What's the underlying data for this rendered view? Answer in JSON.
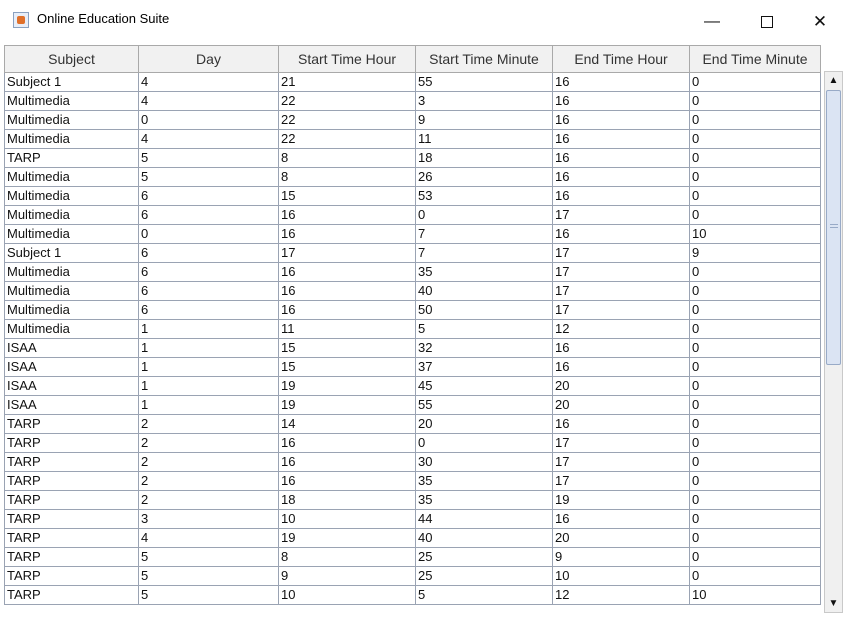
{
  "window": {
    "title": "Online Education Suite",
    "min": "—",
    "close": "✕"
  },
  "table": {
    "columns": [
      "Subject",
      "Day",
      "Start Time Hour",
      "Start Time Minute",
      "End Time Hour",
      "End Time Minute"
    ],
    "rows": [
      [
        "Subject 1",
        "4",
        "21",
        "55",
        "16",
        "0"
      ],
      [
        "Multimedia",
        "4",
        "22",
        "3",
        "16",
        "0"
      ],
      [
        "Multimedia",
        "0",
        "22",
        "9",
        "16",
        "0"
      ],
      [
        "Multimedia",
        "4",
        "22",
        "11",
        "16",
        "0"
      ],
      [
        "TARP",
        "5",
        "8",
        "18",
        "16",
        "0"
      ],
      [
        "Multimedia",
        "5",
        "8",
        "26",
        "16",
        "0"
      ],
      [
        "Multimedia",
        "6",
        "15",
        "53",
        "16",
        "0"
      ],
      [
        "Multimedia",
        "6",
        "16",
        "0",
        "17",
        "0"
      ],
      [
        "Multimedia",
        "0",
        "16",
        "7",
        "16",
        "10"
      ],
      [
        "Subject 1",
        "6",
        "17",
        "7",
        "17",
        "9"
      ],
      [
        "Multimedia",
        "6",
        "16",
        "35",
        "17",
        "0"
      ],
      [
        "Multimedia",
        "6",
        "16",
        "40",
        "17",
        "0"
      ],
      [
        "Multimedia",
        "6",
        "16",
        "50",
        "17",
        "0"
      ],
      [
        "Multimedia",
        "1",
        "11",
        "5",
        "12",
        "0"
      ],
      [
        "ISAA",
        "1",
        "15",
        "32",
        "16",
        "0"
      ],
      [
        "ISAA",
        "1",
        "15",
        "37",
        "16",
        "0"
      ],
      [
        "ISAA",
        "1",
        "19",
        "45",
        "20",
        "0"
      ],
      [
        "ISAA",
        "1",
        "19",
        "55",
        "20",
        "0"
      ],
      [
        "TARP",
        "2",
        "14",
        "20",
        "16",
        "0"
      ],
      [
        "TARP",
        "2",
        "16",
        "0",
        "17",
        "0"
      ],
      [
        "TARP",
        "2",
        "16",
        "30",
        "17",
        "0"
      ],
      [
        "TARP",
        "2",
        "16",
        "35",
        "17",
        "0"
      ],
      [
        "TARP",
        "2",
        "18",
        "35",
        "19",
        "0"
      ],
      [
        "TARP",
        "3",
        "10",
        "44",
        "16",
        "0"
      ],
      [
        "TARP",
        "4",
        "19",
        "40",
        "20",
        "0"
      ],
      [
        "TARP",
        "5",
        "8",
        "25",
        "9",
        "0"
      ],
      [
        "TARP",
        "5",
        "9",
        "25",
        "10",
        "0"
      ],
      [
        "TARP",
        "5",
        "10",
        "5",
        "12",
        "10"
      ]
    ]
  },
  "scrollbar": {
    "up_arrow": "▲",
    "down_arrow": "▼"
  }
}
